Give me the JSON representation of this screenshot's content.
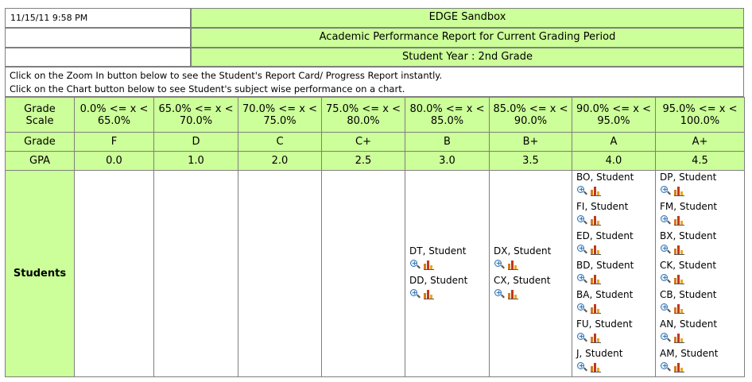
{
  "header": {
    "timestamp": "11/15/11 9:58 PM",
    "school": "EDGE Sandbox",
    "report_title": "Academic Performance Report for Current Grading Period",
    "student_year": "Student Year : 2nd Grade"
  },
  "notes": {
    "zoom_note": "Click on the Zoom In button below to see the Student's Report Card/ Progress Report instantly.",
    "chart_note": "Click on the Chart button below to see Student's subject wise performance on a chart."
  },
  "row_labels": {
    "scale_line1": "Grade",
    "scale_line2": "Scale",
    "grade": "Grade",
    "gpa": "GPA",
    "students": "Students"
  },
  "columns": [
    {
      "scale1": "0.0% <= x <",
      "scale2": "65.0%",
      "grade": "F",
      "gpa": "0.0",
      "students": []
    },
    {
      "scale1": "65.0% <= x <",
      "scale2": "70.0%",
      "grade": "D",
      "gpa": "1.0",
      "students": []
    },
    {
      "scale1": "70.0% <= x <",
      "scale2": "75.0%",
      "grade": "C",
      "gpa": "2.0",
      "students": []
    },
    {
      "scale1": "75.0% <= x <",
      "scale2": "80.0%",
      "grade": "C+",
      "gpa": "2.5",
      "students": []
    },
    {
      "scale1": "80.0% <= x <",
      "scale2": "85.0%",
      "grade": "B",
      "gpa": "3.0",
      "students": [
        "DT, Student",
        "DD, Student"
      ]
    },
    {
      "scale1": "85.0% <= x <",
      "scale2": "90.0%",
      "grade": "B+",
      "gpa": "3.5",
      "students": [
        "DX, Student",
        "CX, Student"
      ]
    },
    {
      "scale1": "90.0% <= x <",
      "scale2": "95.0%",
      "grade": "A",
      "gpa": "4.0",
      "students": [
        "BO, Student",
        "FI, Student",
        "ED, Student",
        "BD, Student",
        "BA, Student",
        "FU, Student",
        "J, Student"
      ]
    },
    {
      "scale1": "95.0% <= x <",
      "scale2": "100.0%",
      "grade": "A+",
      "gpa": "4.5",
      "students": [
        "DP, Student",
        "FM, Student",
        "BX, Student",
        "CK, Student",
        "CB, Student",
        "AN, Student",
        "AM, Student"
      ]
    }
  ],
  "icons": {
    "zoom": "zoom-in-icon",
    "chart": "bar-chart-icon"
  },
  "colors": {
    "header_bg": "#ccff99",
    "border": "#7f7f7f"
  }
}
